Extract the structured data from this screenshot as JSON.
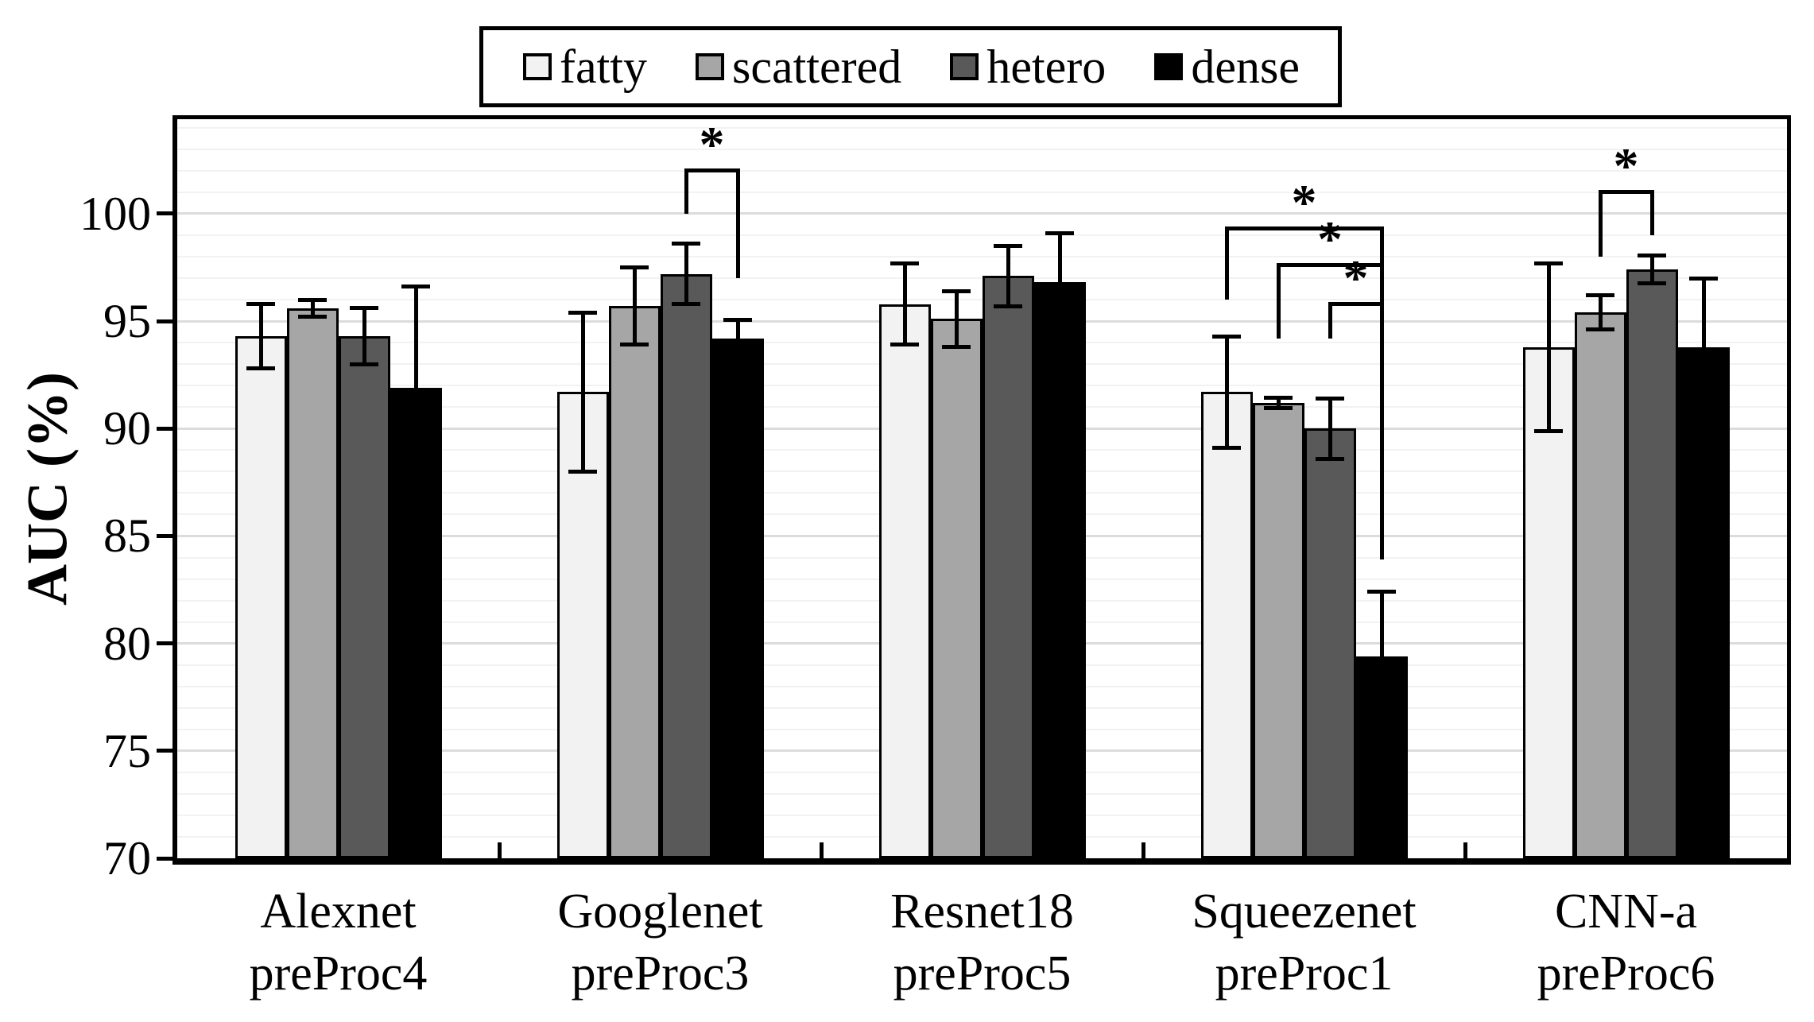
{
  "chart_data": {
    "type": "bar",
    "title": "",
    "ylabel": "AUC (%)",
    "ylim": [
      70,
      104.4
    ],
    "yticks": [
      70,
      75,
      80,
      85,
      90,
      95,
      100
    ],
    "minor_grid_step": 1,
    "major_grid_step": 5,
    "grid": "horizontal",
    "legend_position": "top-center",
    "legend": [
      "fatty",
      "scattered",
      "hetero",
      "dense"
    ],
    "categories": [
      {
        "line1": "Alexnet",
        "line2": "preProc4"
      },
      {
        "line1": "Googlenet",
        "line2": "preProc3"
      },
      {
        "line1": "Resnet18",
        "line2": "preProc5"
      },
      {
        "line1": "Squeezenet",
        "line2": "preProc1"
      },
      {
        "line1": "CNN-a",
        "line2": "preProc6"
      }
    ],
    "series": [
      {
        "name": "fatty",
        "color": "#f2f2f2",
        "values": [
          94.3,
          91.7,
          95.8,
          91.7,
          93.8
        ],
        "errors": [
          1.5,
          3.7,
          1.9,
          2.6,
          3.9
        ]
      },
      {
        "name": "scattered",
        "color": "#a6a6a6",
        "values": [
          95.6,
          95.7,
          95.1,
          91.2,
          95.4
        ],
        "errors": [
          0.4,
          1.8,
          1.3,
          0.25,
          0.8
        ]
      },
      {
        "name": "hetero",
        "color": "#595959",
        "values": [
          94.3,
          97.2,
          97.1,
          90.0,
          97.4
        ],
        "errors": [
          1.3,
          1.4,
          1.4,
          1.4,
          0.65
        ]
      },
      {
        "name": "dense",
        "color": "#000000",
        "values": [
          91.9,
          94.2,
          96.8,
          79.4,
          93.8
        ],
        "errors": [
          4.7,
          0.85,
          2.3,
          3.0,
          3.2
        ]
      }
    ],
    "significance_brackets": [
      {
        "category": 1,
        "from_series": 2,
        "to_series": 3,
        "label": "*",
        "bar_y": 102.1,
        "left_leg_to": 100.0,
        "right_leg_to": 97.0
      },
      {
        "category": 3,
        "from_series": 0,
        "to_series": 3,
        "label": "*",
        "bar_y": 99.4,
        "left_leg_to": 96.0,
        "right_leg_to": 83.9
      },
      {
        "category": 3,
        "from_series": 1,
        "to_series": 3,
        "label": "*",
        "bar_y": 97.7,
        "left_leg_to": 94.2,
        "right_leg_to": 83.9
      },
      {
        "category": 3,
        "from_series": 2,
        "to_series": 3,
        "label": "*",
        "bar_y": 95.9,
        "left_leg_to": 94.2,
        "right_leg_to": 83.9
      },
      {
        "category": 4,
        "from_series": 1,
        "to_series": 2,
        "label": "*",
        "bar_y": 101.1,
        "left_leg_to": 98.0,
        "right_leg_to": 99.0
      }
    ],
    "colors": {
      "axis": "#000000",
      "grid_minor": "#f2f2f2",
      "grid_major": "#dcdcdc",
      "background": "#ffffff"
    }
  }
}
